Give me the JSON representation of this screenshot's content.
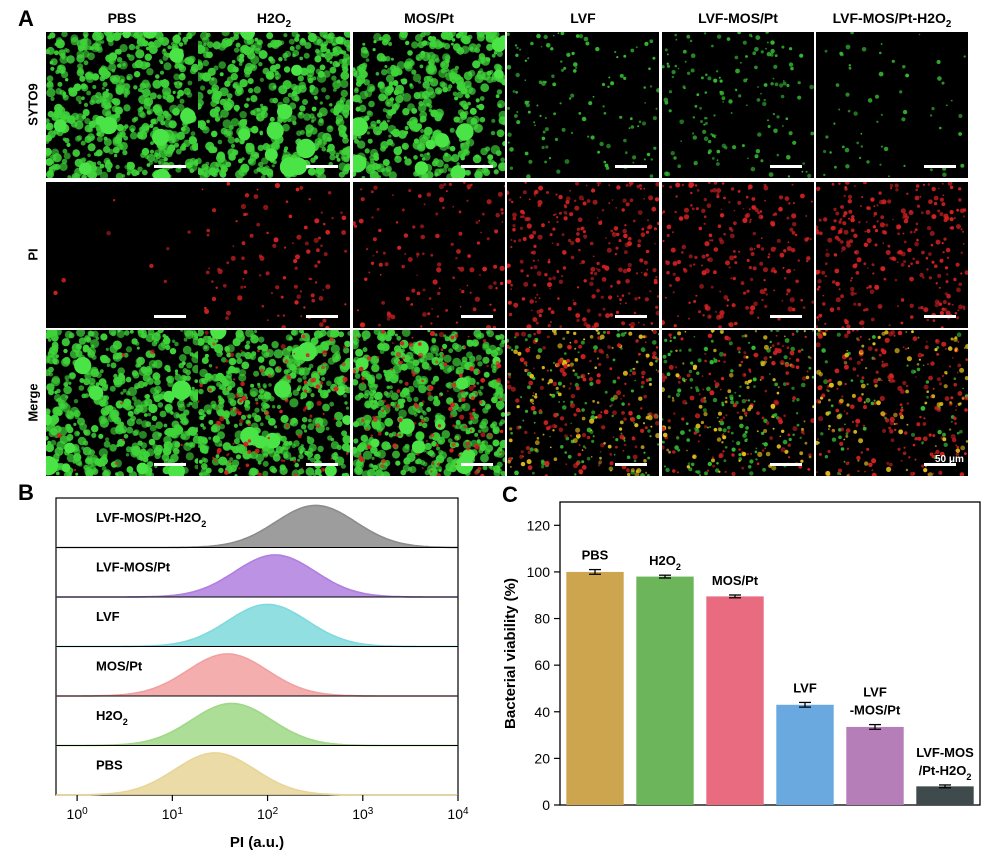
{
  "panel_a": {
    "label": "A",
    "columns": [
      "PBS",
      "H2O2",
      "MOS/Pt",
      "LVF",
      "LVF-MOS/Pt",
      "LVF-MOS/Pt-H2O2"
    ],
    "rows": [
      "SYTO9",
      "PI",
      "Merge"
    ],
    "scale_label": "50 μm"
  },
  "panel_b": {
    "label": "B",
    "xlabel": "PI (a.u.)",
    "xticks": [
      "10^0",
      "10^1",
      "10^2",
      "10^3",
      "10^4"
    ]
  },
  "panel_c": {
    "label": "C",
    "ylabel": "Bacterial viability (%)"
  },
  "chart_data": [
    {
      "type": "area",
      "panel": "B",
      "xscale": "log",
      "xlim": [
        0.6,
        10000
      ],
      "xlabel": "PI (a.u.)",
      "series": [
        {
          "name": "LVF-MOS/Pt-H2O2",
          "peak": 320,
          "color": "#8c8c8c"
        },
        {
          "name": "LVF-MOS/Pt",
          "peak": 120,
          "color": "#b07fe0"
        },
        {
          "name": "LVF",
          "peak": 100,
          "color": "#7fd9dd"
        },
        {
          "name": "MOS/Pt",
          "peak": 38,
          "color": "#f2a0a0"
        },
        {
          "name": "H2O2",
          "peak": 42,
          "color": "#9fd886"
        },
        {
          "name": "PBS",
          "peak": 28,
          "color": "#e8d597"
        }
      ]
    },
    {
      "type": "bar",
      "panel": "C",
      "categories": [
        "PBS",
        "H2O2",
        "MOS/Pt",
        "LVF",
        "LVF-MOS/Pt",
        "LVF-MOS/Pt-H2O2"
      ],
      "values": [
        100,
        98,
        89.5,
        43,
        33.5,
        8
      ],
      "errors": [
        1.0,
        0.6,
        0.6,
        1.0,
        1.0,
        0.6
      ],
      "colors": [
        "#cea54f",
        "#6cb55a",
        "#e96b80",
        "#6aa9df",
        "#b57eb8",
        "#3f4a4c"
      ],
      "ylabel": "Bacterial viability (%)",
      "ylim": [
        0,
        130
      ],
      "yticks": [
        0,
        20,
        40,
        60,
        80,
        100,
        120
      ]
    }
  ]
}
